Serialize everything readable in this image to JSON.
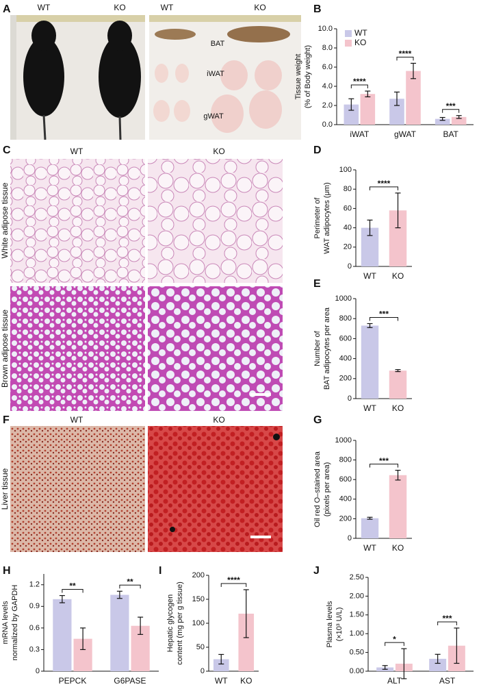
{
  "figure": {
    "photos": [
      {
        "panel": "A",
        "labels": [
          "WT",
          "KO",
          "WT",
          "KO",
          "BAT",
          "iWAT",
          "gWAT"
        ]
      },
      {
        "panel": "C",
        "labels": [
          "WT",
          "KO",
          "White adipose tissue",
          "Brown adipose tissue"
        ]
      },
      {
        "panel": "F",
        "labels": [
          "WT",
          "KO",
          "Liver tissue"
        ]
      }
    ]
  },
  "chart_data": [
    {
      "panel": "B",
      "type": "bar",
      "ylabel": [
        "Tissue weight",
        "(% of Body weight)"
      ],
      "categories": [
        "iWAT",
        "gWAT",
        "BAT"
      ],
      "series": [
        {
          "name": "WT",
          "color": "#c9c8e8",
          "values": [
            2.1,
            2.7,
            0.6
          ],
          "errors": [
            0.6,
            0.7,
            0.15
          ]
        },
        {
          "name": "KO",
          "color": "#f4c4cc",
          "values": [
            3.2,
            5.6,
            0.8
          ],
          "errors": [
            0.3,
            0.8,
            0.15
          ]
        }
      ],
      "ylim": [
        0,
        10
      ],
      "yticks": [
        {
          "value": 0,
          "label": "0.0"
        },
        {
          "value": 2,
          "label": "2.0"
        },
        {
          "value": 4,
          "label": "4.0"
        },
        {
          "value": 6,
          "label": "6.0"
        },
        {
          "value": 8,
          "label": "8.0"
        },
        {
          "value": 10,
          "label": "10.0"
        }
      ],
      "significance": [
        "****",
        "****",
        "***"
      ],
      "legend": "top-left"
    },
    {
      "panel": "D",
      "type": "bar",
      "ylabel": [
        "Perimeter of",
        "WAT adipocytes (μm)"
      ],
      "categories": [
        "WT",
        "KO"
      ],
      "values": [
        40,
        58
      ],
      "errors": [
        8,
        18
      ],
      "colors": [
        "#c9c8e8",
        "#f4c4cc"
      ],
      "ylim": [
        0,
        100
      ],
      "yticks": [
        0,
        20,
        40,
        60,
        80,
        100
      ],
      "significance": [
        "****"
      ]
    },
    {
      "panel": "E",
      "type": "bar",
      "ylabel": [
        "Number of",
        "BAT adipocytes per area"
      ],
      "categories": [
        "WT",
        "KO"
      ],
      "values": [
        730,
        280
      ],
      "errors": [
        20,
        10
      ],
      "colors": [
        "#c9c8e8",
        "#f4c4cc"
      ],
      "ylim": [
        0,
        1000
      ],
      "yticks": [
        0,
        200,
        400,
        600,
        800,
        1000
      ],
      "significance": [
        "***"
      ]
    },
    {
      "panel": "G",
      "type": "bar",
      "ylabel": [
        "Oil red O–stained area",
        "(pixels per area)"
      ],
      "categories": [
        "WT",
        "KO"
      ],
      "values": [
        205,
        645
      ],
      "errors": [
        10,
        50
      ],
      "colors": [
        "#c9c8e8",
        "#f4c4cc"
      ],
      "ylim": [
        0,
        1000
      ],
      "yticks": [
        0,
        200,
        400,
        600,
        800,
        1000
      ],
      "significance": [
        "***"
      ]
    },
    {
      "panel": "H",
      "type": "bar",
      "ylabel": [
        "mRNA levels",
        "normalized by GAPDH"
      ],
      "categories": [
        "PEPCK",
        "G6PASE"
      ],
      "series": [
        {
          "name": "WT",
          "color": "#c9c8e8",
          "values": [
            1.0,
            1.06
          ],
          "errors": [
            0.05,
            0.05
          ]
        },
        {
          "name": "KO",
          "color": "#f4c4cc",
          "values": [
            0.45,
            0.63
          ],
          "errors": [
            0.15,
            0.12
          ]
        }
      ],
      "ylim": [
        0,
        1.35
      ],
      "yticks": [
        0,
        0.3,
        0.6,
        0.9,
        1.2
      ],
      "significance": [
        "**",
        "**"
      ]
    },
    {
      "panel": "I",
      "type": "bar",
      "ylabel": [
        "Hepatic glycogen",
        "content (mg per g tissue)"
      ],
      "categories": [
        "WT",
        "KO"
      ],
      "values": [
        25,
        120
      ],
      "errors": [
        10,
        50
      ],
      "colors": [
        "#c9c8e8",
        "#f4c4cc"
      ],
      "ylim": [
        0,
        200
      ],
      "yticks": [
        0,
        50,
        100,
        150,
        200
      ],
      "significance": [
        "****"
      ]
    },
    {
      "panel": "J",
      "type": "bar",
      "ylabel": [
        "Plasma levels",
        "(×10³ U/L)"
      ],
      "categories": [
        "ALT",
        "AST"
      ],
      "series": [
        {
          "name": "WT",
          "color": "#c9c8e8",
          "values": [
            0.1,
            0.33
          ],
          "errors": [
            0.05,
            0.12
          ]
        },
        {
          "name": "KO",
          "color": "#f4c4cc",
          "values": [
            0.2,
            0.68
          ],
          "errors": [
            0.4,
            0.47
          ]
        }
      ],
      "ylim": [
        0,
        2.5
      ],
      "yticks": [
        {
          "value": 0,
          "label": "0.00"
        },
        {
          "value": 0.5,
          "label": "0.50"
        },
        {
          "value": 1,
          "label": "1.00"
        },
        {
          "value": 1.5,
          "label": "1.50"
        },
        {
          "value": 2,
          "label": "2.00"
        },
        {
          "value": 2.5,
          "label": "2.50"
        }
      ],
      "significance": [
        "*",
        "***"
      ]
    }
  ]
}
